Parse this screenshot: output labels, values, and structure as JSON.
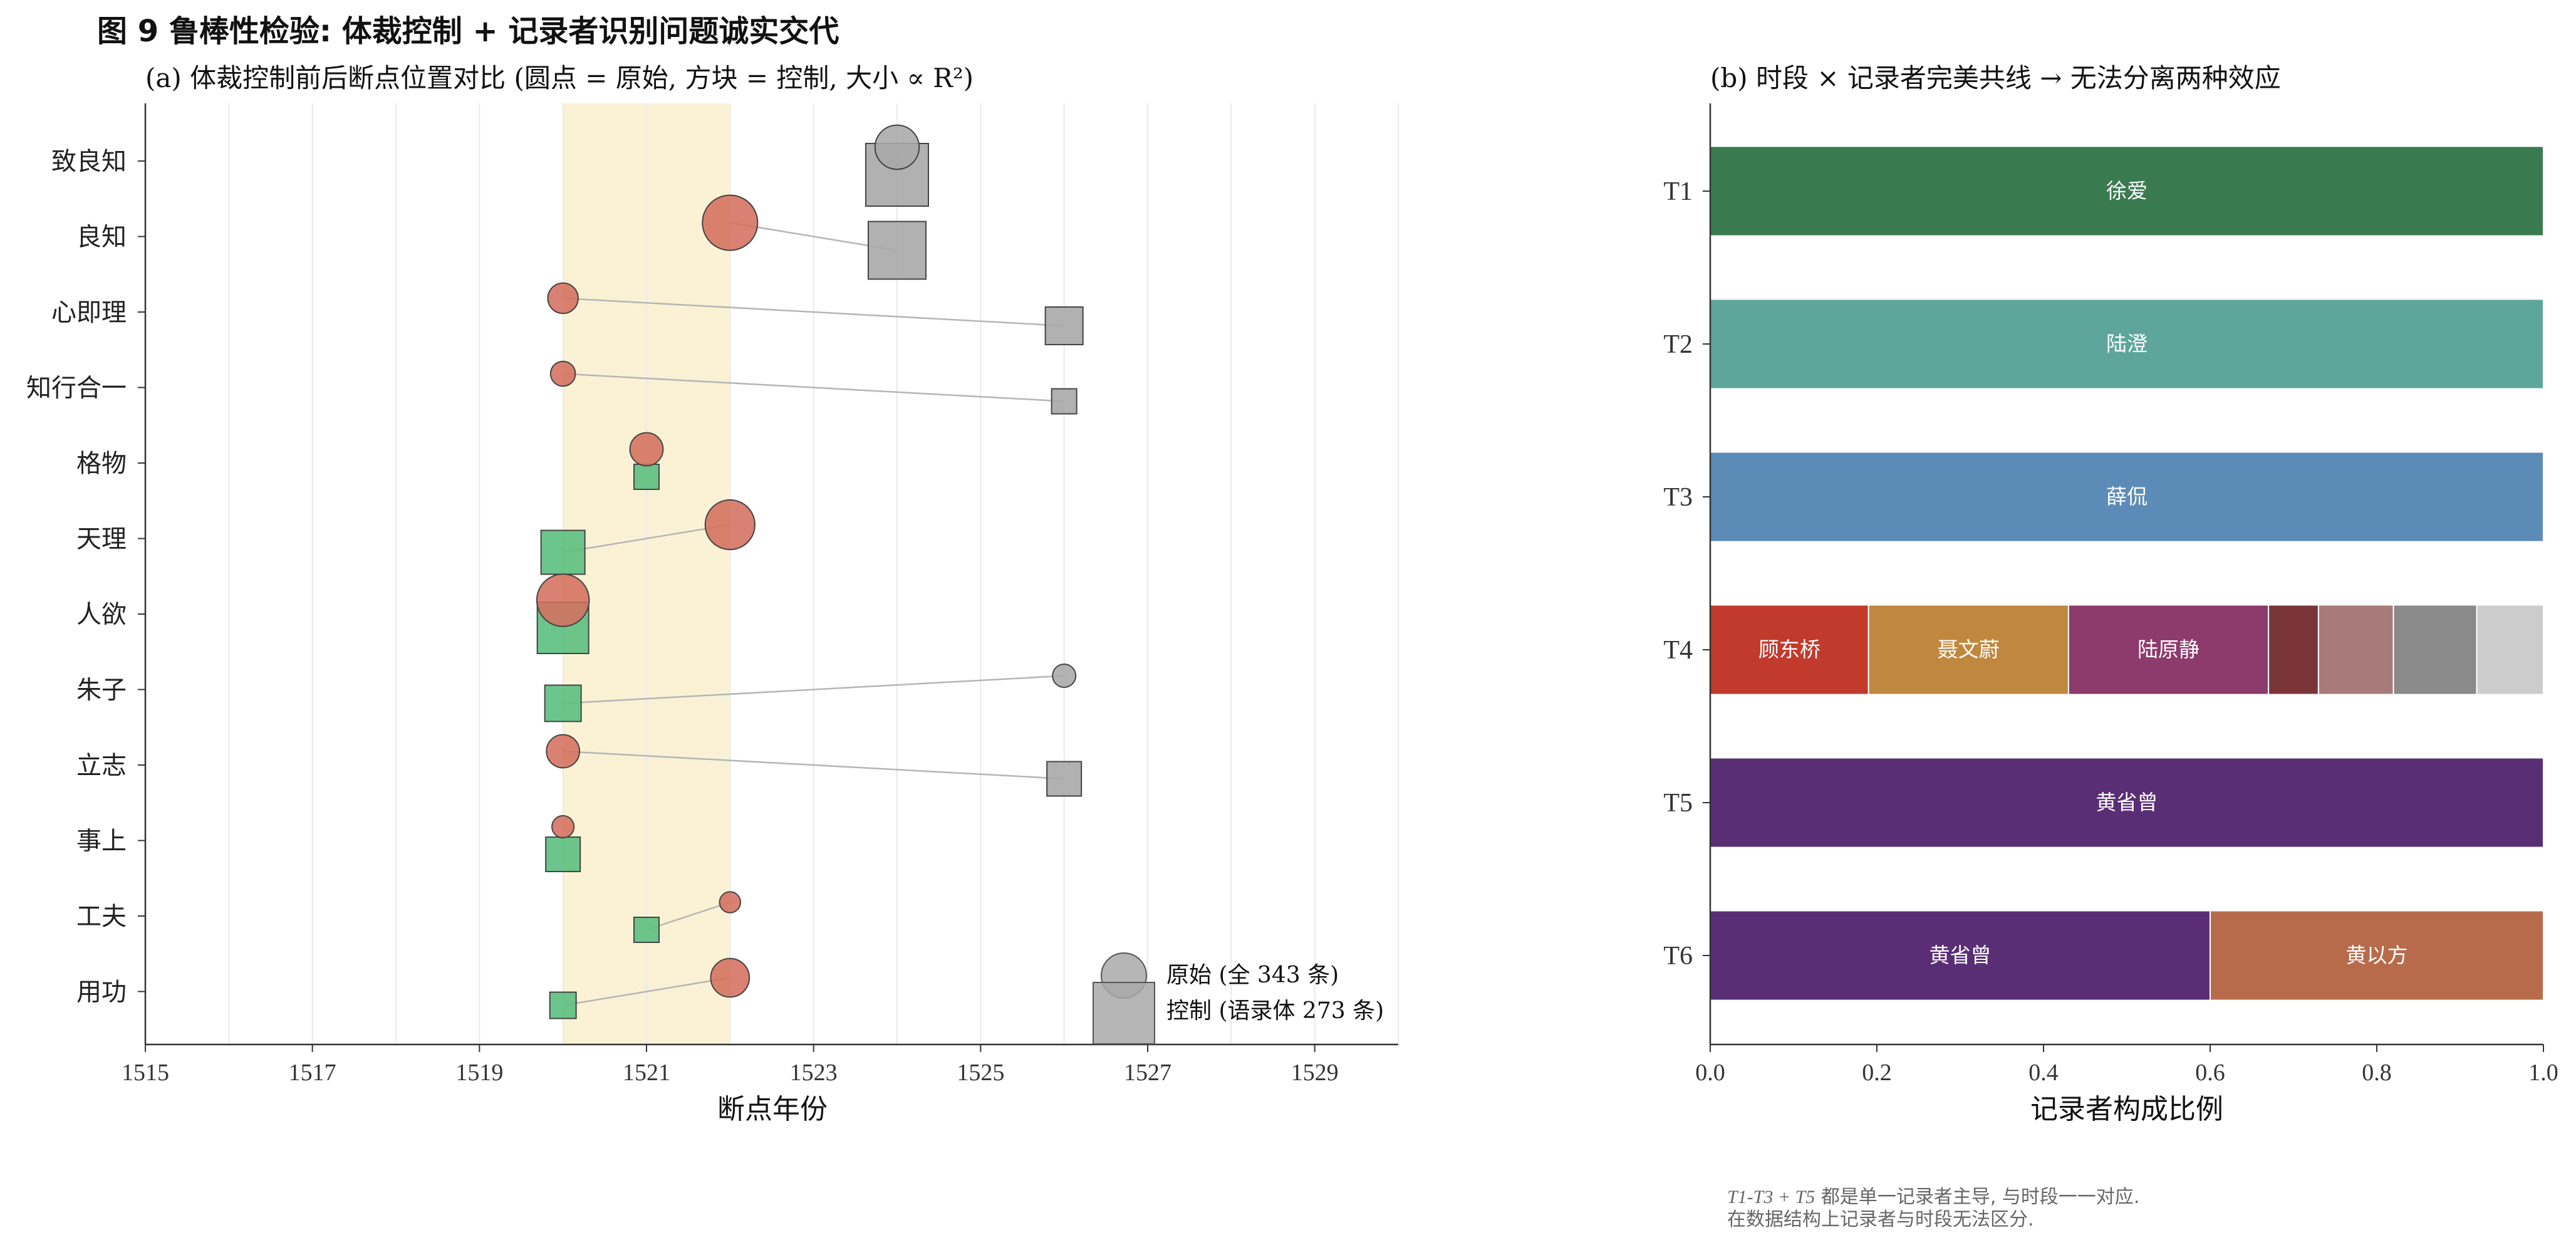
{
  "figure": {
    "title": "图 9  鲁棒性检验: 体裁控制 + 记录者识别问题诚实交代"
  },
  "chart_data": [
    {
      "type": "scatter",
      "subtitle": "(a) 体裁控制前后断点位置对比 (圆点 = 原始, 方块 = 控制, 大小 ∝ R²)",
      "xlabel": "断点年份",
      "xlim": [
        1515,
        1530
      ],
      "xticks": [
        1515,
        1517,
        1519,
        1521,
        1523,
        1525,
        1527,
        1529
      ],
      "grid": "x",
      "highlight_band": [
        1520,
        1522
      ],
      "categories": [
        "致良知",
        "良知",
        "心即理",
        "知行合一",
        "格物",
        "天理",
        "人欲",
        "朱子",
        "立志",
        "事上",
        "工夫",
        "用功"
      ],
      "series": [
        {
          "name": "原始 (全 343 条)",
          "marker": "circle",
          "x": [
            1524,
            1522,
            1520,
            1520,
            1521,
            1522,
            1520,
            1526,
            1520,
            1520,
            1522,
            1522
          ],
          "significant": [
            false,
            true,
            true,
            true,
            true,
            true,
            true,
            false,
            true,
            true,
            true,
            true
          ],
          "relative_size": [
            0.8,
            1.0,
            0.55,
            0.45,
            0.6,
            0.9,
            0.95,
            0.42,
            0.6,
            0.4,
            0.38,
            0.7
          ]
        },
        {
          "name": "控制 (语录体 273 条)",
          "marker": "square",
          "x": [
            1524,
            1524,
            1526,
            1526,
            1521,
            1520,
            1520,
            1520,
            1526,
            1520,
            1521,
            1520
          ],
          "significant": [
            false,
            false,
            false,
            false,
            true,
            true,
            true,
            true,
            false,
            true,
            true,
            true
          ],
          "relative_size": [
            1.0,
            0.92,
            0.6,
            0.4,
            0.4,
            0.7,
            0.82,
            0.58,
            0.55,
            0.55,
            0.4,
            0.42
          ]
        }
      ],
      "colors": {
        "significant_circle": "#d4705e",
        "significant_square": "#5cbf7f",
        "non_significant": "#a9a9a9",
        "band": "#faf0cf",
        "connector": "#b5b5b5"
      },
      "legend": {
        "placement": "lower-right"
      }
    },
    {
      "type": "bar",
      "orientation": "horizontal",
      "stacked": true,
      "subtitle": "(b) 时段 × 记录者完美共线 → 无法分离两种效应",
      "xlabel": "记录者构成比例",
      "xlim": [
        0,
        1
      ],
      "xticks": [
        "0.0",
        "0.2",
        "0.4",
        "0.6",
        "0.8",
        "1.0"
      ],
      "categories": [
        "T1",
        "T2",
        "T3",
        "T4",
        "T5",
        "T6"
      ],
      "rows": [
        {
          "period": "T1",
          "segments": [
            {
              "label": "徐爱",
              "value": 1.0,
              "color": "#3a7a4f"
            }
          ]
        },
        {
          "period": "T2",
          "segments": [
            {
              "label": "陆澄",
              "value": 1.0,
              "color": "#5ea69b"
            }
          ]
        },
        {
          "period": "T3",
          "segments": [
            {
              "label": "薛侃",
              "value": 1.0,
              "color": "#5b8bb6"
            }
          ]
        },
        {
          "period": "T4",
          "segments": [
            {
              "label": "顾东桥",
              "value": 0.19,
              "color": "#c23a2c"
            },
            {
              "label": "聂文蔚",
              "value": 0.24,
              "color": "#c0883e"
            },
            {
              "label": "陆原静",
              "value": 0.24,
              "color": "#8d3a6c"
            },
            {
              "label": "",
              "value": 0.06,
              "color": "#7b3538"
            },
            {
              "label": "",
              "value": 0.09,
              "color": "#a87b7a"
            },
            {
              "label": "",
              "value": 0.1,
              "color": "#8a8a8a"
            },
            {
              "label": "",
              "value": 0.08,
              "color": "#cccccc"
            }
          ]
        },
        {
          "period": "T5",
          "segments": [
            {
              "label": "黄省曾",
              "value": 1.0,
              "color": "#5a2e75"
            }
          ]
        },
        {
          "period": "T6",
          "segments": [
            {
              "label": "黄省曾",
              "value": 0.6,
              "color": "#5a2e75"
            },
            {
              "label": "黄以方",
              "value": 0.4,
              "color": "#b86b4b"
            }
          ]
        }
      ]
    }
  ],
  "note": {
    "line1_prefix": "T1-T3 + T5",
    "line1_rest": " 都是单一记录者主导, 与时段一一对应.",
    "line2": "在数据结构上记录者与时段无法区分."
  }
}
